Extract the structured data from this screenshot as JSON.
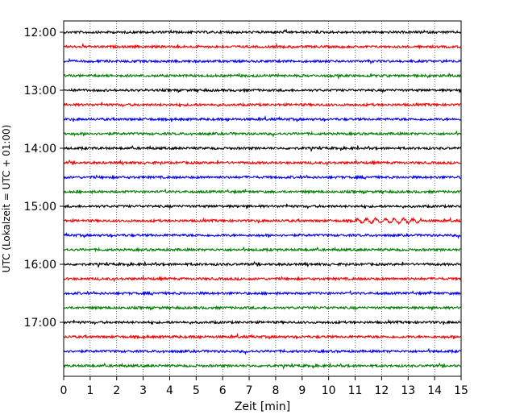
{
  "chart_data": {
    "type": "line",
    "title": "",
    "xlabel": "Zeit  [min]",
    "ylabel": "UTC (Lokalzeit = UTC + 01:00)",
    "xlim": [
      0,
      15
    ],
    "x_ticks": [
      "0",
      "1",
      "2",
      "3",
      "4",
      "5",
      "6",
      "7",
      "8",
      "9",
      "10",
      "11",
      "12",
      "13",
      "14",
      "15"
    ],
    "y_ticks": [
      "12:00",
      "13:00",
      "14:00",
      "15:00",
      "16:00",
      "17:00"
    ],
    "grid": "vertical dotted at each minute",
    "legend": "none",
    "traces_per_hour": 4,
    "trace_interval_minutes": 15,
    "series": [
      {
        "start": "12:00",
        "color": "#000000"
      },
      {
        "start": "12:15",
        "color": "#ff0000"
      },
      {
        "start": "12:30",
        "color": "#0000ff"
      },
      {
        "start": "12:45",
        "color": "#008000"
      },
      {
        "start": "13:00",
        "color": "#000000"
      },
      {
        "start": "13:15",
        "color": "#ff0000"
      },
      {
        "start": "13:30",
        "color": "#0000ff"
      },
      {
        "start": "13:45",
        "color": "#008000"
      },
      {
        "start": "14:00",
        "color": "#000000"
      },
      {
        "start": "14:15",
        "color": "#ff0000"
      },
      {
        "start": "14:30",
        "color": "#0000ff"
      },
      {
        "start": "14:45",
        "color": "#008000"
      },
      {
        "start": "15:00",
        "color": "#000000"
      },
      {
        "start": "15:15",
        "color": "#ff0000"
      },
      {
        "start": "15:30",
        "color": "#0000ff"
      },
      {
        "start": "15:45",
        "color": "#008000"
      },
      {
        "start": "16:00",
        "color": "#000000"
      },
      {
        "start": "16:15",
        "color": "#ff0000"
      },
      {
        "start": "16:30",
        "color": "#0000ff"
      },
      {
        "start": "16:45",
        "color": "#008000"
      },
      {
        "start": "17:00",
        "color": "#000000"
      },
      {
        "start": "17:15",
        "color": "#ff0000"
      },
      {
        "start": "17:30",
        "color": "#0000ff"
      },
      {
        "start": "17:45",
        "color": "#008000"
      }
    ]
  }
}
